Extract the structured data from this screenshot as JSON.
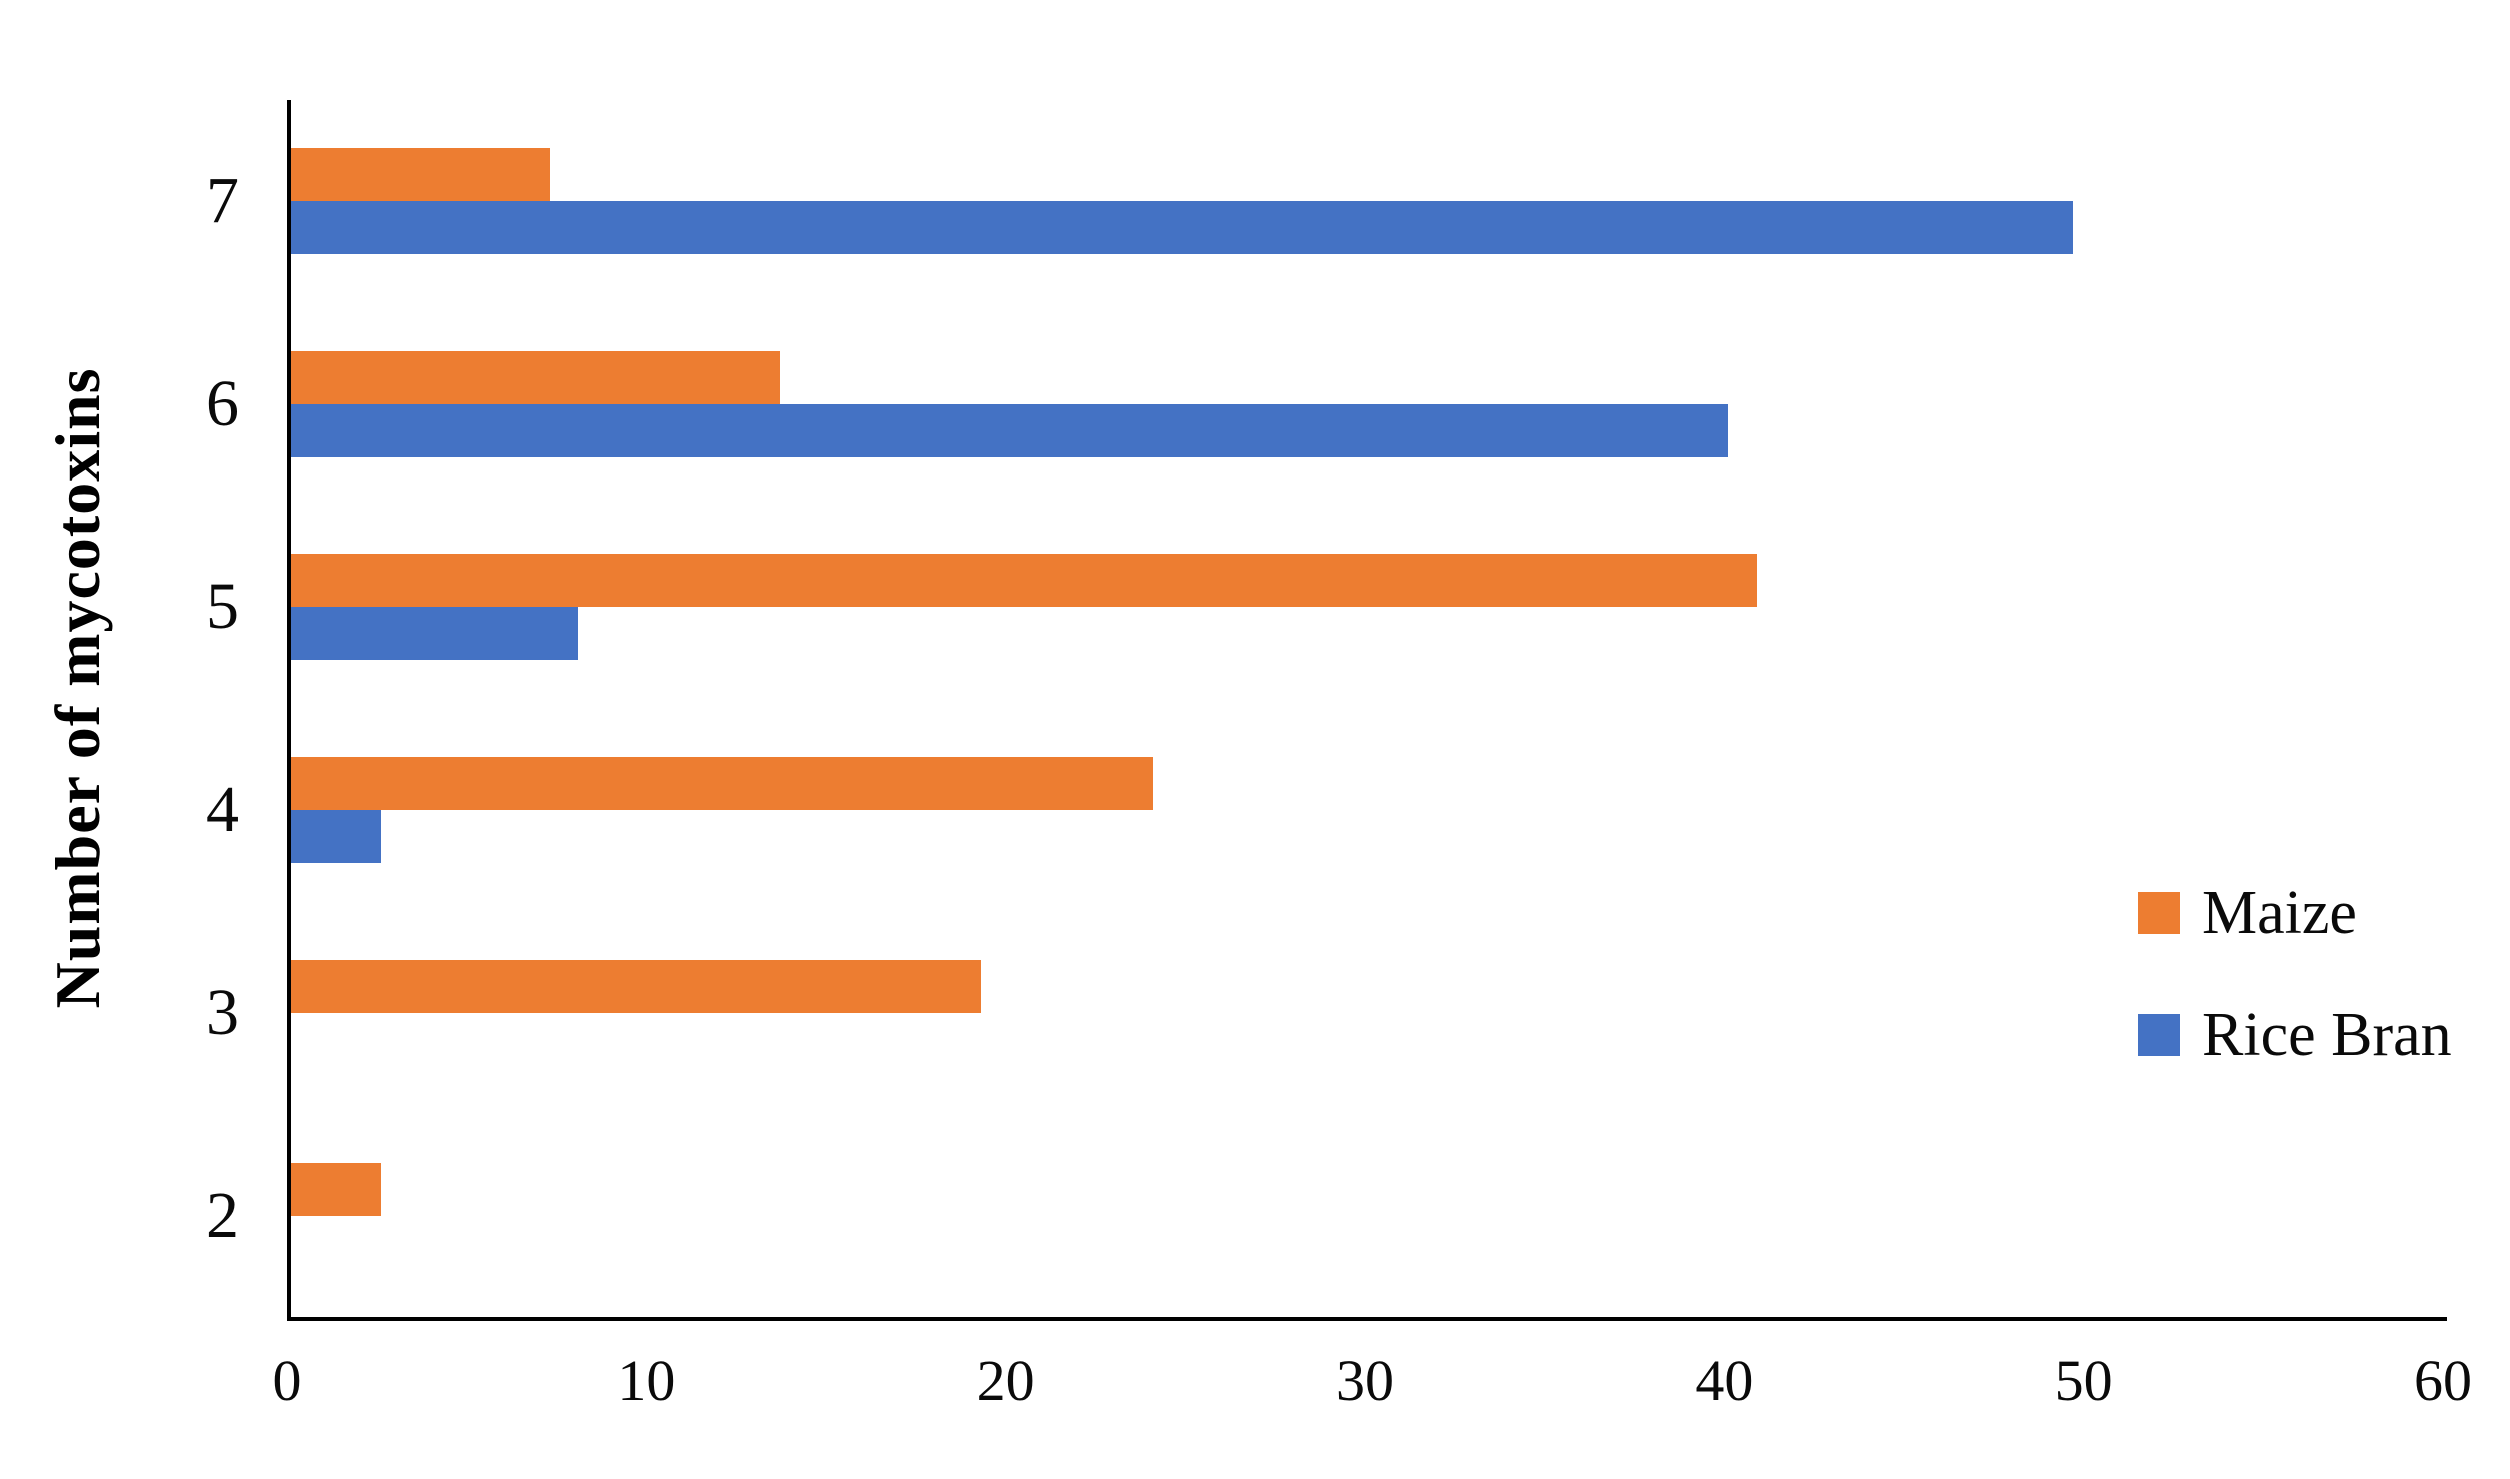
{
  "chart_data": {
    "type": "bar",
    "orientation": "horizontal",
    "title": "",
    "xlabel": "",
    "ylabel": "Number of mycotoxins",
    "categories": [
      "7",
      "6",
      "5",
      "4",
      "3",
      "2"
    ],
    "series": [
      {
        "name": "Maize",
        "color": "#ED7D31",
        "values": [
          7.2,
          13.6,
          40.8,
          24.0,
          19.2,
          2.5
        ]
      },
      {
        "name": "Rice Bran",
        "color": "#4472C4",
        "values": [
          49.6,
          40.0,
          8.0,
          2.5,
          0,
          0
        ]
      }
    ],
    "x_ticks": [
      "0",
      "10",
      "20",
      "30",
      "40",
      "50",
      "60"
    ],
    "xlim": [
      0,
      60
    ],
    "grid": false,
    "legend_position": "right"
  },
  "colors": {
    "axis": "#000000",
    "background": "#ffffff",
    "text": "#0a0a0a"
  }
}
